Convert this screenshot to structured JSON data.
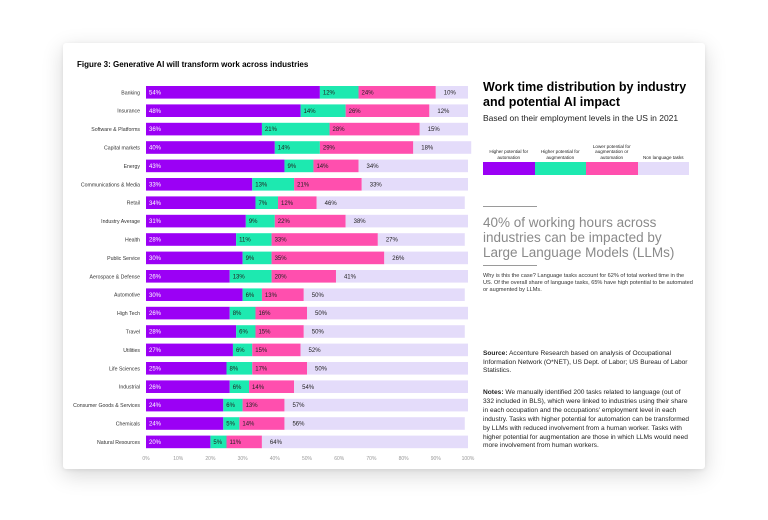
{
  "figure_title": "Figure 3: Generative AI will transform work across industries",
  "chart_data": {
    "type": "bar",
    "orientation": "horizontal",
    "stacked": true,
    "categories": [
      "Banking",
      "Insurance",
      "Software & Platforms",
      "Capital markets",
      "Energy",
      "Communications & Media",
      "Retail",
      "Industry Average",
      "Health",
      "Public Service",
      "Aerospace & Defense",
      "Automotive",
      "High Tech",
      "Travel",
      "Utilities",
      "Life Sciences",
      "Industrial",
      "Consumer Goods & Services",
      "Chemicals",
      "Natural Resources"
    ],
    "series": [
      {
        "name": "Higher potential for automation",
        "color": "#9b00f5",
        "values": [
          54,
          48,
          36,
          40,
          43,
          33,
          34,
          31,
          28,
          30,
          26,
          30,
          26,
          28,
          27,
          25,
          26,
          24,
          24,
          20
        ]
      },
      {
        "name": "Higher potential for augmentation",
        "color": "#1de9b0",
        "values": [
          12,
          14,
          21,
          14,
          9,
          13,
          7,
          9,
          11,
          9,
          13,
          6,
          8,
          6,
          6,
          8,
          6,
          6,
          5,
          5
        ]
      },
      {
        "name": "Lower potential for augmentation or automation",
        "color": "#ff4fae",
        "values": [
          24,
          26,
          28,
          29,
          14,
          21,
          12,
          22,
          33,
          35,
          20,
          13,
          16,
          15,
          15,
          17,
          14,
          13,
          14,
          11
        ]
      },
      {
        "name": "Non language tasks",
        "color": "#e4dcfa",
        "values": [
          10,
          12,
          15,
          18,
          34,
          33,
          46,
          38,
          27,
          26,
          41,
          50,
          50,
          50,
          52,
          50,
          54,
          57,
          56,
          64
        ]
      }
    ],
    "xlim": [
      0,
      100
    ],
    "xticks": [
      "0%",
      "10%",
      "20%",
      "30%",
      "40%",
      "50%",
      "60%",
      "70%",
      "80%",
      "90%",
      "100%"
    ],
    "title": "Work time distribution by industry and potential AI impact",
    "subtitle": "Based on their employment levels in the US in 2021",
    "legend_position": "right"
  },
  "panel": {
    "title": "Work time distribution by industry and potential AI impact",
    "subtitle": "Based on their employment levels in the US in 2021",
    "legend": [
      {
        "label": "Higher potential for automation",
        "color": "#9b00f5"
      },
      {
        "label": "Higher potential for augmentation",
        "color": "#1de9b0"
      },
      {
        "label": "Lower potential for augmentation or automation",
        "color": "#ff4fae"
      },
      {
        "label": "Non language tasks",
        "color": "#e4dcfa"
      }
    ],
    "headline": "40% of working hours across industries can be impacted by Large Language Models (LLMs)",
    "why_text": "Why is this the case? Language tasks account for 62% of total worked time in the US. Of the overall share of language tasks, 65% have high potential to be automated or augmented by LLMs.",
    "source_label": "Source:",
    "source_text": " Accenture Research based on analysis of Occupational Information Network (O*NET), US Dept. of Labor; US Bureau of Labor Statistics.",
    "notes_label": "Notes:",
    "notes_text": " We manually identified 200 tasks related to language (out of 332 included in BLS), which were linked to industries using their share in each occupation and the occupations' employment level in each industry. Tasks with higher potential for automation can be transformed by LLMs with reduced involvement from a human worker. Tasks with higher potential for augmentation are those in which LLMs would need more involvement from human workers."
  }
}
